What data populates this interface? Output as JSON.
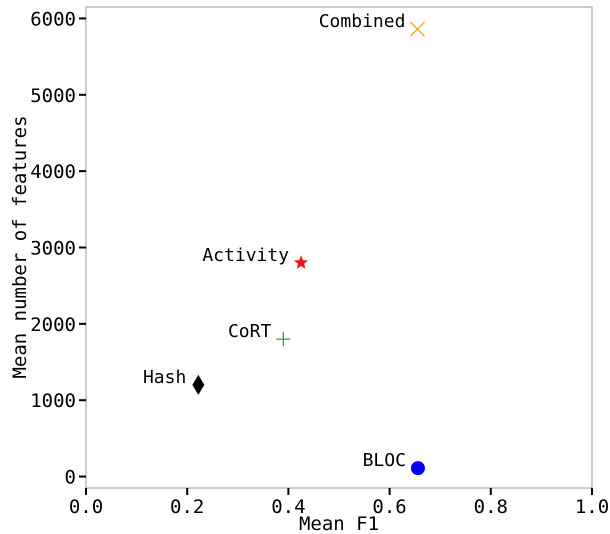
{
  "chart_data": {
    "type": "scatter",
    "title": "",
    "xlabel": "Mean F1",
    "ylabel": "Mean number of features",
    "xlim": [
      0.0,
      1.0
    ],
    "ylim": [
      -150,
      6150
    ],
    "xticks": [
      "0.0",
      "0.2",
      "0.4",
      "0.6",
      "0.8",
      "1.0"
    ],
    "yticks": [
      "0",
      "1000",
      "2000",
      "3000",
      "4000",
      "5000",
      "6000"
    ],
    "grid": false,
    "points": [
      {
        "label": "Combined",
        "x": 0.655,
        "y": 5860,
        "marker": "x",
        "color": "#f5a623"
      },
      {
        "label": "Activity",
        "x": 0.425,
        "y": 2800,
        "marker": "star",
        "color": "#e41a1c"
      },
      {
        "label": "CoRT",
        "x": 0.39,
        "y": 1800,
        "marker": "plus",
        "color": "#2ca02c"
      },
      {
        "label": "Hash",
        "x": 0.222,
        "y": 1200,
        "marker": "diamond",
        "color": "#000000"
      },
      {
        "label": "BLOC",
        "x": 0.656,
        "y": 110,
        "marker": "circle",
        "color": "#0000ff"
      }
    ]
  }
}
